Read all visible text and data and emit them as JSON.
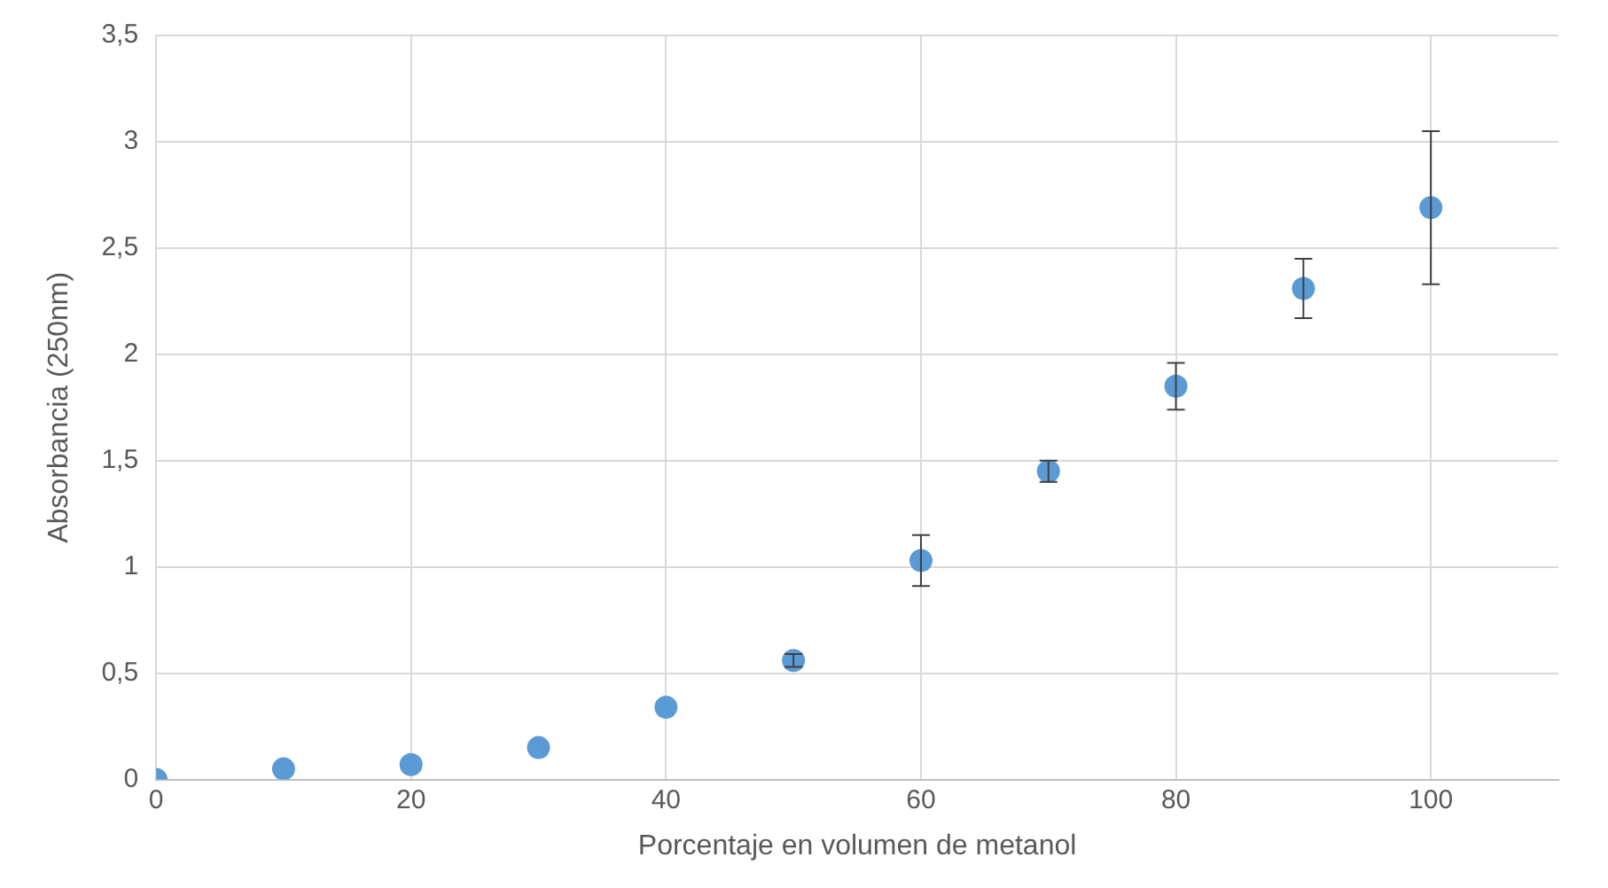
{
  "chart_data": {
    "type": "scatter",
    "xlabel": "Porcentaje en volumen de metanol",
    "ylabel": "Absorbancia (250nm)",
    "x": [
      0,
      10,
      20,
      30,
      40,
      50,
      60,
      70,
      80,
      90,
      100
    ],
    "series": [
      {
        "color": "#5b9bd5",
        "values": [
          0,
          0.05,
          0.07,
          0.15,
          0.34,
          0.56,
          1.03,
          1.45,
          1.85,
          2.31,
          2.69
        ],
        "errors": [
          null,
          null,
          null,
          null,
          null,
          0.03,
          0.12,
          0.05,
          0.11,
          0.14,
          0.36
        ]
      }
    ],
    "xlim": [
      0,
      110
    ],
    "xticks": [
      0,
      20,
      40,
      60,
      80,
      100
    ],
    "ylim": [
      0,
      3.5
    ],
    "yticks": [
      0,
      {
        "value": 0.5,
        "label": "0,5"
      },
      1,
      {
        "value": 1.5,
        "label": "1,5"
      },
      2,
      {
        "value": 2.5,
        "label": "2,5"
      },
      3,
      {
        "value": 3.5,
        "label": "3,5"
      }
    ],
    "grid": true,
    "legend": false,
    "marker": "circle"
  }
}
